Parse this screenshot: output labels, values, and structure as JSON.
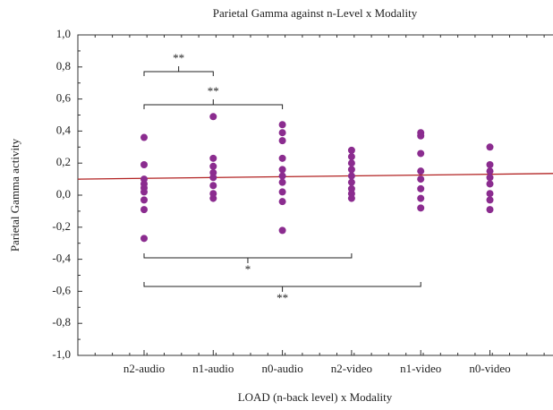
{
  "chart_data": {
    "type": "scatter",
    "title": "Parietal Gamma against n-Level x Modality",
    "x_label": "LOAD (n-back level) x Modality",
    "y_label": "Parietal Gamma activity",
    "categories": [
      "n2-audio",
      "n1-audio",
      "n0-audio",
      "n2-video",
      "n1-video",
      "n0-video"
    ],
    "values": [
      [
        0.36,
        0.19,
        0.1,
        0.07,
        0.045,
        0.02,
        -0.03,
        -0.09,
        -0.27
      ],
      [
        0.49,
        0.23,
        0.18,
        0.14,
        0.11,
        0.06,
        0.01,
        -0.02
      ],
      [
        0.44,
        0.39,
        0.34,
        0.23,
        0.16,
        0.12,
        0.08,
        0.02,
        -0.04,
        -0.22
      ],
      [
        0.28,
        0.24,
        0.2,
        0.16,
        0.12,
        0.08,
        0.04,
        0.01,
        -0.02
      ],
      [
        0.39,
        0.37,
        0.26,
        0.15,
        0.1,
        0.04,
        -0.02,
        -0.08
      ],
      [
        0.3,
        0.19,
        0.15,
        0.11,
        0.07,
        0.01,
        -0.03,
        -0.09
      ]
    ],
    "color": "#8b2c8f",
    "trend": {
      "values": [
        0.1,
        0.135
      ],
      "color": "#b22222"
    },
    "ylim": [
      -1,
      1
    ],
    "yticks": [
      {
        "value": -1,
        "label": "-1,0"
      },
      {
        "value": -0.8,
        "label": "-0,8"
      },
      {
        "value": -0.6,
        "label": "-0,6"
      },
      {
        "value": -0.4,
        "label": "-0,4"
      },
      {
        "value": -0.2,
        "label": "-0,2"
      },
      {
        "value": 0,
        "label": "0,0"
      },
      {
        "value": 0.2,
        "label": "0,2"
      },
      {
        "value": 0.4,
        "label": "0,4"
      },
      {
        "value": 0.6,
        "label": "0,6"
      },
      {
        "value": 0.8,
        "label": "0,8"
      },
      {
        "value": 1,
        "label": "1,0"
      }
    ],
    "annotations": [
      {
        "label": "**",
        "from": 0,
        "to": 1,
        "side": "above"
      },
      {
        "label": "**",
        "from": 0,
        "to": 2,
        "side": "above"
      },
      {
        "label": "*",
        "from": 0,
        "to": 3,
        "side": "below"
      },
      {
        "label": "**",
        "from": 0,
        "to": 4,
        "side": "below"
      }
    ]
  }
}
